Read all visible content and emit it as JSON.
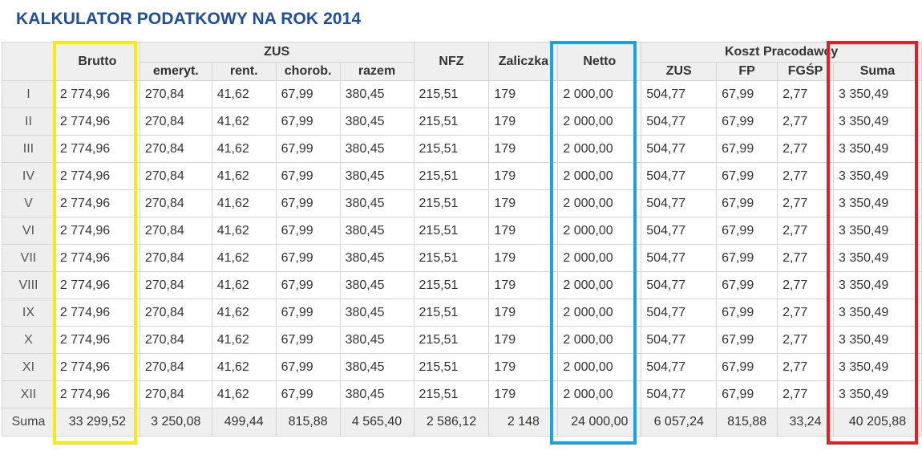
{
  "title": "KALKULATOR PODATKOWY NA ROK 2014",
  "headers": {
    "brutto": "Brutto",
    "zus_group": "ZUS",
    "emeryt": "emeryt.",
    "rent": "rent.",
    "chorob": "chorob.",
    "razem": "razem",
    "nfz": "NFZ",
    "zaliczka": "Zaliczka",
    "netto": "Netto",
    "koszt_group": "Koszt Pracodawcy",
    "k_zus": "ZUS",
    "k_fp": "FP",
    "k_fgsp": "FGŚP",
    "k_suma": "Suma"
  },
  "rows": [
    {
      "month": "I",
      "cells": [
        "2 774,96",
        "270,84",
        "41,62",
        "67,99",
        "380,45",
        "215,51",
        "179",
        "2 000,00",
        "504,77",
        "67,99",
        "2,77",
        "3 350,49"
      ]
    },
    {
      "month": "II",
      "cells": [
        "2 774,96",
        "270,84",
        "41,62",
        "67,99",
        "380,45",
        "215,51",
        "179",
        "2 000,00",
        "504,77",
        "67,99",
        "2,77",
        "3 350,49"
      ]
    },
    {
      "month": "III",
      "cells": [
        "2 774,96",
        "270,84",
        "41,62",
        "67,99",
        "380,45",
        "215,51",
        "179",
        "2 000,00",
        "504,77",
        "67,99",
        "2,77",
        "3 350,49"
      ]
    },
    {
      "month": "IV",
      "cells": [
        "2 774,96",
        "270,84",
        "41,62",
        "67,99",
        "380,45",
        "215,51",
        "179",
        "2 000,00",
        "504,77",
        "67,99",
        "2,77",
        "3 350,49"
      ]
    },
    {
      "month": "V",
      "cells": [
        "2 774,96",
        "270,84",
        "41,62",
        "67,99",
        "380,45",
        "215,51",
        "179",
        "2 000,00",
        "504,77",
        "67,99",
        "2,77",
        "3 350,49"
      ]
    },
    {
      "month": "VI",
      "cells": [
        "2 774,96",
        "270,84",
        "41,62",
        "67,99",
        "380,45",
        "215,51",
        "179",
        "2 000,00",
        "504,77",
        "67,99",
        "2,77",
        "3 350,49"
      ]
    },
    {
      "month": "VII",
      "cells": [
        "2 774,96",
        "270,84",
        "41,62",
        "67,99",
        "380,45",
        "215,51",
        "179",
        "2 000,00",
        "504,77",
        "67,99",
        "2,77",
        "3 350,49"
      ]
    },
    {
      "month": "VIII",
      "cells": [
        "2 774,96",
        "270,84",
        "41,62",
        "67,99",
        "380,45",
        "215,51",
        "179",
        "2 000,00",
        "504,77",
        "67,99",
        "2,77",
        "3 350,49"
      ]
    },
    {
      "month": "IX",
      "cells": [
        "2 774,96",
        "270,84",
        "41,62",
        "67,99",
        "380,45",
        "215,51",
        "179",
        "2 000,00",
        "504,77",
        "67,99",
        "2,77",
        "3 350,49"
      ]
    },
    {
      "month": "X",
      "cells": [
        "2 774,96",
        "270,84",
        "41,62",
        "67,99",
        "380,45",
        "215,51",
        "179",
        "2 000,00",
        "504,77",
        "67,99",
        "2,77",
        "3 350,49"
      ]
    },
    {
      "month": "XI",
      "cells": [
        "2 774,96",
        "270,84",
        "41,62",
        "67,99",
        "380,45",
        "215,51",
        "179",
        "2 000,00",
        "504,77",
        "67,99",
        "2,77",
        "3 350,49"
      ]
    },
    {
      "month": "XII",
      "cells": [
        "2 774,96",
        "270,84",
        "41,62",
        "67,99",
        "380,45",
        "215,51",
        "179",
        "2 000,00",
        "504,77",
        "67,99",
        "2,77",
        "3 350,49"
      ]
    }
  ],
  "summary": {
    "label": "Suma",
    "cells": [
      "33 299,52",
      "3 250,08",
      "499,44",
      "815,88",
      "4 565,40",
      "2 586,12",
      "2 148",
      "24 000,00",
      "6 057,24",
      "815,88",
      "33,24",
      "40 205,88"
    ]
  },
  "highlights": {
    "brutto_color": "#f6ea13",
    "netto_color": "#1aa3df",
    "suma_color": "#e31e24"
  }
}
